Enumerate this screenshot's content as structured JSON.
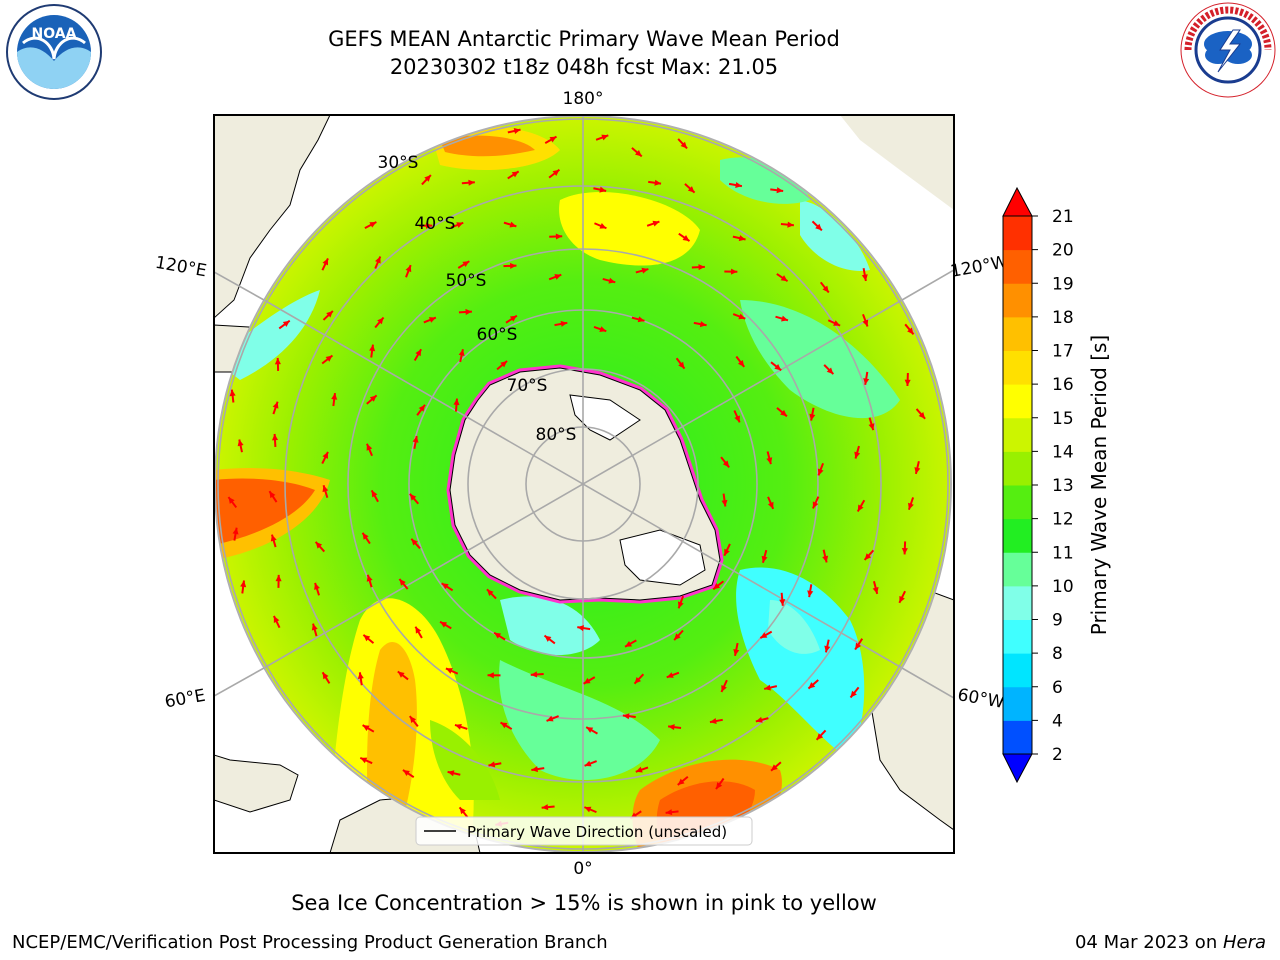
{
  "header": {
    "title_line1": "GEFS MEAN Antarctic Primary Wave Mean Period",
    "title_line2": "20230302 t18z 048h fcst   Max: 21.05"
  },
  "logos": {
    "left_name": "NOAA",
    "right_name": "NATIONAL WEATHER SERVICE"
  },
  "map": {
    "projection": "south-polar-stereographic",
    "lon_labels": {
      "top": "180°",
      "bottom": "0°",
      "left_upper": "120°E",
      "left_lower": "60°E",
      "right_upper": "120°W",
      "right_lower": "60°W"
    },
    "lat_labels": [
      "30°S",
      "40°S",
      "50°S",
      "60°S",
      "70°S",
      "80°S"
    ],
    "legend_label": "Primary Wave Direction (unscaled)",
    "arrow_color": "#ff0000",
    "land_color": "#efedde",
    "ice_color": "#ff33cc"
  },
  "colorbar": {
    "label": "Primary Wave Mean Period [s]",
    "ticks": [
      "2",
      "4",
      "6",
      "8",
      "9",
      "10",
      "11",
      "12",
      "13",
      "14",
      "15",
      "16",
      "17",
      "18",
      "19",
      "20",
      "21"
    ],
    "colors": [
      "#0050ff",
      "#00b4ff",
      "#00e5ff",
      "#40ffff",
      "#80ffe8",
      "#66ff99",
      "#22ee22",
      "#55ee11",
      "#99f000",
      "#ccf500",
      "#ffff00",
      "#ffe000",
      "#ffc000",
      "#ff9000",
      "#ff6000",
      "#ff3000"
    ],
    "under_color": "#0000ff",
    "over_color": "#ff0000"
  },
  "caption": "Sea Ice Concentration > 15% is shown in pink to yellow",
  "footer": {
    "left": "NCEP/EMC/Verification Post Processing Product Generation Branch",
    "right_date": "04 Mar 2023 on ",
    "right_machine": "Hera"
  }
}
